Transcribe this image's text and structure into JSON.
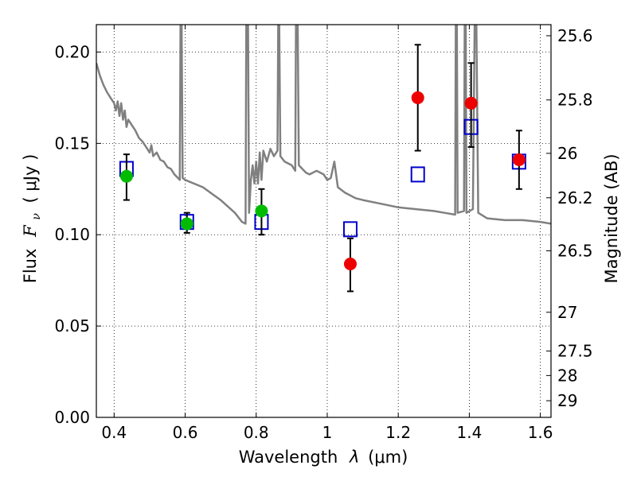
{
  "chart_data": {
    "type": "scatter",
    "xlabel": "Wavelength",
    "xlabel_symbol": "λ",
    "xlabel_unit": "(μm)",
    "ylabel": "Flux",
    "ylabel_symbol": "F",
    "ylabel_subscript": "ν",
    "ylabel_unit": "( μJy )",
    "y2label": "Magnitude (AB)",
    "xlim": [
      0.35,
      1.63
    ],
    "ylim": [
      0.0,
      0.215
    ],
    "grid": true,
    "x_ticks": [
      0.4,
      0.6,
      0.8,
      1.0,
      1.2,
      1.4,
      1.6
    ],
    "x_tick_labels": [
      "0.4",
      "0.6",
      "0.8",
      "1",
      "1.2",
      "1.4",
      "1.6"
    ],
    "y_ticks": [
      0.0,
      0.05,
      0.1,
      0.15,
      0.2
    ],
    "y_tick_labels": [
      "0.00",
      "0.05",
      "0.10",
      "0.15",
      "0.20"
    ],
    "y2_ticks": [
      25.6,
      25.8,
      26.0,
      26.2,
      26.5,
      27.0,
      27.5,
      28.0,
      29.0
    ],
    "y2_tick_labels": [
      "25.6",
      "25.8",
      "26",
      "26.2",
      "26.5",
      "27",
      "27.5",
      "28",
      "29"
    ],
    "colors": {
      "model": "#808080",
      "model_photometry": "#0000cc",
      "optical_detections": "#00bb00",
      "nir_detections": "#ee0000",
      "error_bars": "#000000"
    },
    "series": [
      {
        "marker": "line",
        "points": [
          [
            0.35,
            0.194
          ],
          [
            0.36,
            0.187
          ],
          [
            0.37,
            0.182
          ],
          [
            0.38,
            0.178
          ],
          [
            0.39,
            0.175
          ],
          [
            0.4,
            0.172
          ],
          [
            0.405,
            0.168
          ],
          [
            0.41,
            0.173
          ],
          [
            0.415,
            0.165
          ],
          [
            0.42,
            0.172
          ],
          [
            0.425,
            0.163
          ],
          [
            0.43,
            0.168
          ],
          [
            0.435,
            0.159
          ],
          [
            0.44,
            0.163
          ],
          [
            0.45,
            0.16
          ],
          [
            0.46,
            0.157
          ],
          [
            0.47,
            0.153
          ],
          [
            0.48,
            0.151
          ],
          [
            0.49,
            0.148
          ],
          [
            0.5,
            0.145
          ],
          [
            0.505,
            0.149
          ],
          [
            0.51,
            0.143
          ],
          [
            0.52,
            0.145
          ],
          [
            0.53,
            0.141
          ],
          [
            0.54,
            0.14
          ],
          [
            0.55,
            0.137
          ],
          [
            0.56,
            0.136
          ],
          [
            0.57,
            0.133
          ],
          [
            0.58,
            0.131
          ],
          [
            0.585,
            0.13
          ],
          [
            0.587,
            0.215
          ],
          [
            0.59,
            0.215
          ],
          [
            0.593,
            0.131
          ],
          [
            0.6,
            0.13
          ],
          [
            0.65,
            0.126
          ],
          [
            0.7,
            0.119
          ],
          [
            0.74,
            0.112
          ],
          [
            0.76,
            0.107
          ],
          [
            0.77,
            0.106
          ],
          [
            0.772,
            0.215
          ],
          [
            0.777,
            0.215
          ],
          [
            0.78,
            0.112
          ],
          [
            0.785,
            0.13
          ],
          [
            0.79,
            0.138
          ],
          [
            0.795,
            0.128
          ],
          [
            0.8,
            0.14
          ],
          [
            0.805,
            0.128
          ],
          [
            0.81,
            0.145
          ],
          [
            0.815,
            0.13
          ],
          [
            0.82,
            0.146
          ],
          [
            0.83,
            0.14
          ],
          [
            0.84,
            0.147
          ],
          [
            0.85,
            0.143
          ],
          [
            0.86,
            0.146
          ],
          [
            0.862,
            0.215
          ],
          [
            0.865,
            0.215
          ],
          [
            0.868,
            0.143
          ],
          [
            0.88,
            0.14
          ],
          [
            0.9,
            0.138
          ],
          [
            0.91,
            0.135
          ],
          [
            0.912,
            0.215
          ],
          [
            0.917,
            0.215
          ],
          [
            0.92,
            0.138
          ],
          [
            0.94,
            0.134
          ],
          [
            0.95,
            0.133
          ],
          [
            0.97,
            0.135
          ],
          [
            0.99,
            0.133
          ],
          [
            1.0,
            0.13
          ],
          [
            1.01,
            0.131
          ],
          [
            1.02,
            0.14
          ],
          [
            1.03,
            0.126
          ],
          [
            1.05,
            0.123
          ],
          [
            1.08,
            0.12
          ],
          [
            1.1,
            0.119
          ],
          [
            1.15,
            0.117
          ],
          [
            1.2,
            0.115
          ],
          [
            1.25,
            0.114
          ],
          [
            1.3,
            0.113
          ],
          [
            1.33,
            0.112
          ],
          [
            1.36,
            0.111
          ],
          [
            1.362,
            0.215
          ],
          [
            1.365,
            0.215
          ],
          [
            1.367,
            0.112
          ],
          [
            1.385,
            0.113
          ],
          [
            1.387,
            0.215
          ],
          [
            1.39,
            0.215
          ],
          [
            1.392,
            0.112
          ],
          [
            1.41,
            0.114
          ],
          [
            1.415,
            0.215
          ],
          [
            1.42,
            0.215
          ],
          [
            1.425,
            0.112
          ],
          [
            1.45,
            0.109
          ],
          [
            1.5,
            0.108
          ],
          [
            1.55,
            0.108
          ],
          [
            1.6,
            0.107
          ],
          [
            1.63,
            0.106
          ]
        ]
      },
      {
        "marker": "open-square",
        "points": [
          [
            0.435,
            0.136
          ],
          [
            0.605,
            0.107
          ],
          [
            0.815,
            0.107
          ],
          [
            1.065,
            0.103
          ],
          [
            1.255,
            0.133
          ],
          [
            1.405,
            0.159
          ],
          [
            1.54,
            0.14
          ]
        ]
      },
      {
        "marker": "filled-circle",
        "points": [
          [
            0.435,
            0.132
          ],
          [
            0.605,
            0.106
          ],
          [
            0.815,
            0.113
          ]
        ],
        "yerr": [
          [
            0.013,
            0.012
          ],
          [
            0.005,
            0.006
          ],
          [
            0.013,
            0.012
          ]
        ]
      },
      {
        "marker": "filled-circle",
        "points": [
          [
            1.065,
            0.084
          ],
          [
            1.255,
            0.175
          ],
          [
            1.405,
            0.172
          ],
          [
            1.54,
            0.141
          ]
        ],
        "yerr": [
          [
            0.015,
            0.014
          ],
          [
            0.029,
            0.029
          ],
          [
            0.024,
            0.022
          ],
          [
            0.016,
            0.016
          ]
        ]
      }
    ]
  }
}
